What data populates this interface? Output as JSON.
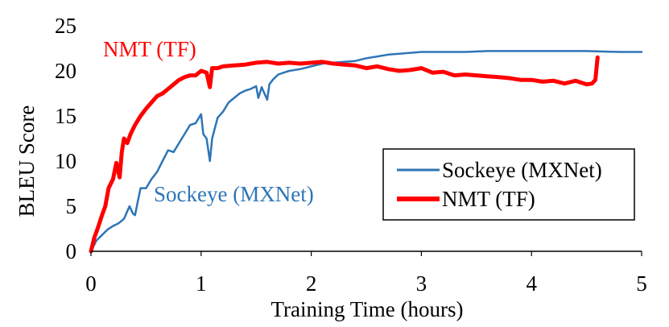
{
  "chart_data": {
    "type": "line",
    "xlabel": "Training Time (hours)",
    "ylabel": "BLEU Score",
    "xlim": [
      0,
      5
    ],
    "ylim": [
      0,
      25
    ],
    "x_ticks": [
      "0",
      "1",
      "2",
      "3",
      "4",
      "5"
    ],
    "y_ticks": [
      "0",
      "5",
      "10",
      "15",
      "20",
      "25"
    ],
    "grid": false,
    "legend_position": "right",
    "annotations": [
      {
        "text": "NMT (TF)",
        "series": "NMT (TF)"
      },
      {
        "text": "Sockeye (MXNet)",
        "series": "Sockeye (MXNet)"
      }
    ],
    "series": [
      {
        "name": "Sockeye (MXNet)",
        "color": "#2e75b6",
        "line_weight": "thin",
        "x": [
          0,
          0.05,
          0.1,
          0.15,
          0.2,
          0.25,
          0.3,
          0.35,
          0.38,
          0.4,
          0.43,
          0.45,
          0.5,
          0.55,
          0.6,
          0.65,
          0.7,
          0.75,
          0.8,
          0.85,
          0.9,
          0.95,
          1.0,
          1.02,
          1.05,
          1.08,
          1.1,
          1.15,
          1.2,
          1.25,
          1.3,
          1.35,
          1.4,
          1.45,
          1.5,
          1.52,
          1.55,
          1.6,
          1.62,
          1.65,
          1.7,
          1.75,
          1.8,
          1.9,
          2.0,
          2.1,
          2.2,
          2.3,
          2.4,
          2.5,
          2.6,
          2.7,
          2.8,
          2.9,
          3.0,
          3.2,
          3.4,
          3.6,
          3.8,
          4.0,
          4.2,
          4.5,
          4.8,
          5.0
        ],
        "y": [
          0,
          1.2,
          1.8,
          2.4,
          2.8,
          3.1,
          3.6,
          5.0,
          4.2,
          4.0,
          5.8,
          7.0,
          7.0,
          8.0,
          8.8,
          10.0,
          11.2,
          11.0,
          12.0,
          13.0,
          14.0,
          14.2,
          15.2,
          13.0,
          12.5,
          10.0,
          12.5,
          14.8,
          15.5,
          16.5,
          17.0,
          17.5,
          17.8,
          18.0,
          18.3,
          17.0,
          18.2,
          16.8,
          18.5,
          19.0,
          19.6,
          19.8,
          20.0,
          20.2,
          20.5,
          20.8,
          20.9,
          21.0,
          21.1,
          21.4,
          21.6,
          21.8,
          21.9,
          22.0,
          22.1,
          22.1,
          22.1,
          22.2,
          22.2,
          22.2,
          22.2,
          22.2,
          22.1,
          22.1
        ]
      },
      {
        "name": "NMT (TF)",
        "color": "#ff0000",
        "line_weight": "thick",
        "x": [
          0,
          0.03,
          0.06,
          0.1,
          0.13,
          0.16,
          0.2,
          0.23,
          0.26,
          0.28,
          0.3,
          0.33,
          0.36,
          0.4,
          0.45,
          0.5,
          0.55,
          0.6,
          0.65,
          0.7,
          0.75,
          0.8,
          0.85,
          0.9,
          0.95,
          1.0,
          1.05,
          1.08,
          1.1,
          1.15,
          1.2,
          1.3,
          1.4,
          1.5,
          1.6,
          1.7,
          1.8,
          1.9,
          2.0,
          2.1,
          2.2,
          2.3,
          2.4,
          2.5,
          2.6,
          2.7,
          2.8,
          2.9,
          3.0,
          3.1,
          3.2,
          3.3,
          3.4,
          3.5,
          3.6,
          3.7,
          3.8,
          3.9,
          4.0,
          4.1,
          4.2,
          4.3,
          4.4,
          4.5,
          4.55,
          4.58,
          4.6
        ],
        "y": [
          0,
          1.5,
          2.5,
          4.0,
          5.0,
          7.0,
          8.0,
          9.8,
          8.2,
          11.0,
          12.5,
          12.0,
          13.0,
          14.0,
          15.0,
          15.8,
          16.5,
          17.2,
          17.5,
          18.0,
          18.5,
          19.0,
          19.3,
          19.5,
          19.5,
          20.0,
          19.8,
          18.2,
          20.3,
          20.3,
          20.5,
          20.6,
          20.7,
          20.9,
          21.0,
          20.8,
          20.9,
          20.8,
          20.9,
          21.0,
          20.8,
          20.7,
          20.6,
          20.3,
          20.5,
          20.2,
          20.0,
          20.1,
          20.3,
          19.8,
          19.9,
          19.5,
          19.6,
          19.5,
          19.4,
          19.3,
          19.2,
          19.0,
          19.0,
          18.8,
          18.9,
          18.6,
          18.9,
          18.5,
          18.6,
          19.0,
          21.5
        ]
      }
    ]
  }
}
